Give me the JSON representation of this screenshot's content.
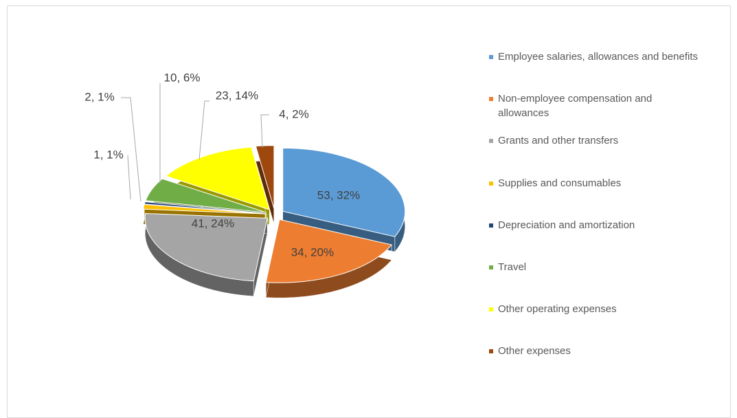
{
  "chart_data": {
    "type": "pie",
    "categories": [
      "Employee salaries, allowances and benefits",
      "Non-employee compensation and allowances",
      "Grants and other transfers",
      "Supplies and consumables",
      "Depreciation and amortization",
      "Travel",
      "Other operating expenses",
      "Other expenses"
    ],
    "values": [
      53,
      34,
      41,
      2,
      1,
      10,
      23,
      4
    ],
    "value_labels": [
      "53, 32%",
      "34, 20%",
      "41, 24%",
      "2, 1%",
      "1, 1%",
      "10, 6%",
      "23, 14%",
      "4, 2%"
    ],
    "colors": [
      "#5b9bd5",
      "#ed7d31",
      "#a5a5a5",
      "#ffc000",
      "#264478",
      "#70ad47",
      "#ffff00",
      "#9e480e"
    ],
    "legend": "right"
  }
}
